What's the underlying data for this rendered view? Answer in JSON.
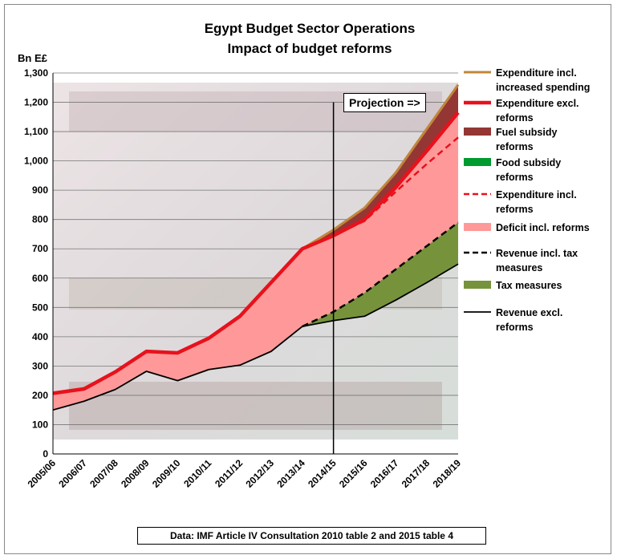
{
  "chart_data": {
    "type": "area",
    "title": "Egypt Budget Sector Operations",
    "subtitle": "Impact of budget reforms",
    "ylabel": "Bn E£",
    "xlabel": "",
    "ylim": [
      0,
      1300
    ],
    "yticks": [
      "0",
      "100",
      "200",
      "300",
      "400",
      "500",
      "600",
      "700",
      "800",
      "900",
      "1,000",
      "1,100",
      "1,200",
      "1,300"
    ],
    "ytick_values": [
      0,
      100,
      200,
      300,
      400,
      500,
      600,
      700,
      800,
      900,
      1000,
      1100,
      1200,
      1300
    ],
    "categories": [
      "2005/06",
      "2006/07",
      "2007/08",
      "2008/09",
      "2009/10",
      "2010/11",
      "2011/12",
      "2012/13",
      "2013/14",
      "2014/15",
      "2015/16",
      "2016/17",
      "2017/18",
      "2018/19"
    ],
    "grid": "horizontal",
    "legend_position": "right",
    "projection_label": "Projection =>",
    "projection_start": "2014/15",
    "series": [
      {
        "name": "Expenditure incl. increased spending",
        "color": "#C0863C",
        "kind": "line",
        "values": [
          null,
          null,
          null,
          null,
          null,
          null,
          null,
          null,
          700,
          765,
          840,
          960,
          1110,
          1260
        ]
      },
      {
        "name": "Expenditure excl. reforms",
        "color": "#E8111C",
        "kind": "line",
        "values": [
          207,
          222,
          280,
          350,
          345,
          395,
          470,
          585,
          700,
          745,
          800,
          910,
          1035,
          1165
        ]
      },
      {
        "name": "Fuel subsidy reforms",
        "color": "#943634",
        "kind": "band"
      },
      {
        "name": "Food subsidy reforms",
        "color": "#009A2E",
        "kind": "band"
      },
      {
        "name": "Expenditure incl. reforms",
        "color": "#E8111C",
        "kind": "dashed",
        "values": [
          null,
          null,
          null,
          null,
          null,
          null,
          null,
          null,
          700,
          745,
          795,
          895,
          990,
          1080
        ]
      },
      {
        "name": "Deficit incl. reforms",
        "color": "#FF9999",
        "kind": "band"
      },
      {
        "name": "Revenue incl. tax measures",
        "color": "#000000",
        "kind": "dashed",
        "values": [
          null,
          null,
          null,
          null,
          null,
          null,
          null,
          null,
          435,
          485,
          550,
          630,
          710,
          790
        ]
      },
      {
        "name": "Tax measures",
        "color": "#76933C",
        "kind": "band"
      },
      {
        "name": "Revenue excl. reforms",
        "color": "#000000",
        "kind": "line",
        "values": [
          150,
          180,
          220,
          282,
          250,
          288,
          303,
          350,
          435,
          455,
          470,
          525,
          585,
          648
        ]
      }
    ]
  },
  "source_note": "Data: IMF Article IV Consultation 2010 table 2 and 2015 table 4",
  "background_image": "fifty-pounds-banknote"
}
